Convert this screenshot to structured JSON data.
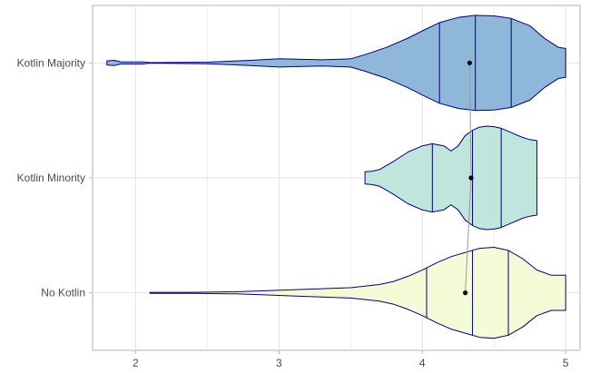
{
  "chart_data": {
    "type": "violin",
    "title": "",
    "xlabel": "",
    "ylabel": "",
    "xlim": [
      1.7,
      5.1
    ],
    "x_ticks": [
      2,
      3,
      4,
      5
    ],
    "x_tick_labels": [
      "2",
      "3",
      "4",
      "5"
    ],
    "grid": true,
    "orientation": "horizontal",
    "categories": [
      "Kotlin Majority",
      "Kotlin Minority",
      "No Kotlin"
    ],
    "series": [
      {
        "category": "Kotlin Majority",
        "fill": "#8fb7da",
        "mean": 4.33,
        "quantiles": [
          4.12,
          4.37,
          4.62
        ],
        "range": [
          1.8,
          5.0
        ],
        "density_x": [
          1.8,
          1.85,
          1.9,
          2.05,
          2.1,
          2.5,
          2.8,
          3.0,
          3.3,
          3.5,
          3.6,
          3.75,
          3.9,
          4.0,
          4.12,
          4.25,
          4.37,
          4.5,
          4.62,
          4.75,
          4.85,
          4.95,
          5.0
        ],
        "density_half_width": [
          0.04,
          0.05,
          0.02,
          0.02,
          0.005,
          0.015,
          0.05,
          0.08,
          0.06,
          0.08,
          0.16,
          0.3,
          0.48,
          0.62,
          0.78,
          0.88,
          0.92,
          0.91,
          0.86,
          0.72,
          0.48,
          0.3,
          0.28
        ]
      },
      {
        "category": "Kotlin Minority",
        "fill": "#bfe5dc",
        "mean": 4.34,
        "quantiles": [
          4.07,
          4.35,
          4.55
        ],
        "range": [
          3.6,
          4.8
        ],
        "density_x": [
          3.6,
          3.65,
          3.7,
          3.8,
          3.9,
          4.0,
          4.07,
          4.15,
          4.2,
          4.25,
          4.3,
          4.35,
          4.4,
          4.45,
          4.5,
          4.55,
          4.6,
          4.7,
          4.75,
          4.8
        ],
        "density_half_width": [
          0.12,
          0.13,
          0.16,
          0.32,
          0.5,
          0.62,
          0.66,
          0.62,
          0.52,
          0.62,
          0.82,
          0.92,
          0.98,
          1.0,
          0.99,
          0.96,
          0.9,
          0.78,
          0.74,
          0.72
        ]
      },
      {
        "category": "No Kotlin",
        "fill": "#f4fbd6",
        "mean": 4.3,
        "quantiles": [
          4.03,
          4.35,
          4.6
        ],
        "range": [
          2.1,
          5.0
        ],
        "density_x": [
          2.1,
          2.4,
          2.7,
          2.9,
          3.1,
          3.3,
          3.5,
          3.7,
          3.8,
          3.9,
          4.0,
          4.1,
          4.2,
          4.3,
          4.4,
          4.5,
          4.6,
          4.7,
          4.8,
          4.9,
          4.95,
          5.0
        ],
        "density_half_width": [
          0.01,
          0.01,
          0.02,
          0.04,
          0.06,
          0.08,
          0.1,
          0.16,
          0.22,
          0.32,
          0.44,
          0.58,
          0.7,
          0.78,
          0.86,
          0.88,
          0.82,
          0.66,
          0.44,
          0.34,
          0.34,
          0.34
        ]
      }
    ],
    "mean_line_color": "#999999",
    "outline_color": "#000080"
  }
}
